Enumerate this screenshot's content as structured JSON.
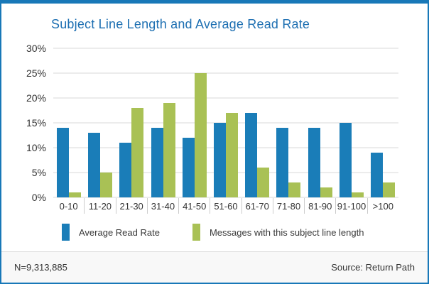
{
  "frame": {
    "border_color": "#1878b8"
  },
  "chart_data": {
    "type": "bar",
    "title": "Subject Line Length and Average Read Rate",
    "title_color": "#1d6fb2",
    "categories": [
      "0-10",
      "11-20",
      "21-30",
      "31-40",
      "41-50",
      "51-60",
      "61-70",
      "71-80",
      "81-90",
      "91-100",
      ">100"
    ],
    "series": [
      {
        "name": "Average Read Rate",
        "color": "#1a7db8",
        "values": [
          14,
          13,
          11,
          14,
          12,
          15,
          17,
          14,
          14,
          15,
          9
        ]
      },
      {
        "name": "Messages with this subject line length",
        "color": "#a9c155",
        "values": [
          1,
          5,
          18,
          19,
          25,
          17,
          6,
          3,
          2,
          1,
          3
        ]
      }
    ],
    "xlabel": "",
    "ylabel": "",
    "ylim": [
      0,
      30
    ],
    "ytick_step": 5,
    "ytick_labels": [
      "0%",
      "5%",
      "10%",
      "15%",
      "20%",
      "25%",
      "30%"
    ],
    "grid": true,
    "legend_position": "bottom"
  },
  "footer": {
    "sample_label": "N=9,313,885",
    "source_label": "Source: Return Path"
  }
}
